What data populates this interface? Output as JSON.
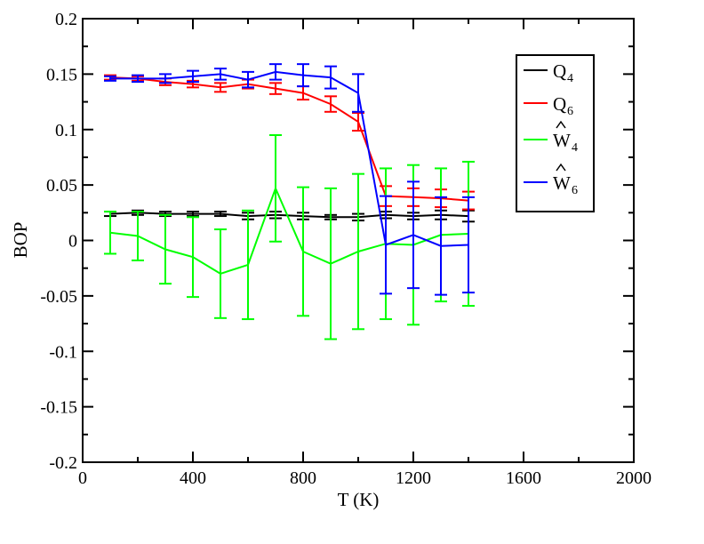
{
  "chart_data": {
    "type": "line",
    "xlabel": "T (K)",
    "ylabel": "BOP",
    "xlim": [
      0,
      2000
    ],
    "ylim": [
      -0.2,
      0.2
    ],
    "x_ticks": [
      "0",
      "400",
      "800",
      "1200",
      "1600",
      "2000"
    ],
    "y_ticks": [
      "-0.2",
      "-0.15",
      "-0.1",
      "-0.05",
      "0",
      "0.05",
      "0.1",
      "0.15",
      "0.2"
    ],
    "grid": false,
    "legend_position": "top-right",
    "series": [
      {
        "name": "Q4",
        "legend_main": "Q",
        "legend_sub": "4",
        "hat": false,
        "color": "#000000",
        "x": [
          100,
          200,
          300,
          400,
          500,
          600,
          700,
          800,
          900,
          1000,
          1100,
          1200,
          1300,
          1400
        ],
        "y": [
          0.024,
          0.025,
          0.024,
          0.024,
          0.024,
          0.022,
          0.023,
          0.022,
          0.021,
          0.021,
          0.023,
          0.022,
          0.023,
          0.022
        ],
        "err": [
          0.002,
          0.002,
          0.002,
          0.002,
          0.002,
          0.003,
          0.003,
          0.003,
          0.002,
          0.003,
          0.003,
          0.003,
          0.004,
          0.005
        ]
      },
      {
        "name": "Q6",
        "legend_main": "Q",
        "legend_sub": "6",
        "hat": false,
        "color": "#ff0000",
        "x": [
          100,
          200,
          300,
          400,
          500,
          600,
          700,
          800,
          900,
          1000,
          1100,
          1200,
          1300,
          1400
        ],
        "y": [
          0.147,
          0.146,
          0.143,
          0.141,
          0.138,
          0.141,
          0.137,
          0.133,
          0.123,
          0.107,
          0.04,
          0.039,
          0.038,
          0.036
        ],
        "err": [
          0.002,
          0.002,
          0.003,
          0.003,
          0.004,
          0.004,
          0.005,
          0.006,
          0.007,
          0.008,
          0.009,
          0.008,
          0.008,
          0.008
        ]
      },
      {
        "name": "W4",
        "legend_main": "W",
        "legend_sub": "4",
        "hat": true,
        "color": "#00ff00",
        "x": [
          100,
          200,
          300,
          400,
          500,
          600,
          700,
          800,
          900,
          1000,
          1100,
          1200,
          1300,
          1400
        ],
        "y": [
          0.007,
          0.004,
          -0.008,
          -0.015,
          -0.03,
          -0.022,
          0.047,
          -0.01,
          -0.021,
          -0.01,
          -0.003,
          -0.004,
          0.005,
          0.006
        ],
        "err": [
          0.019,
          0.022,
          0.031,
          0.036,
          0.04,
          0.049,
          0.048,
          0.058,
          0.068,
          0.07,
          0.068,
          0.072,
          0.06,
          0.065
        ]
      },
      {
        "name": "W6",
        "legend_main": "W",
        "legend_sub": "6",
        "hat": true,
        "color": "#0000ff",
        "x": [
          100,
          200,
          300,
          400,
          500,
          600,
          700,
          800,
          900,
          1000,
          1100,
          1200,
          1300,
          1400
        ],
        "y": [
          0.146,
          0.146,
          0.146,
          0.148,
          0.15,
          0.145,
          0.152,
          0.149,
          0.147,
          0.133,
          -0.004,
          0.005,
          -0.005,
          -0.004
        ],
        "err": [
          0.002,
          0.003,
          0.004,
          0.005,
          0.005,
          0.007,
          0.007,
          0.01,
          0.01,
          0.017,
          0.044,
          0.048,
          0.044,
          0.043
        ]
      }
    ]
  }
}
